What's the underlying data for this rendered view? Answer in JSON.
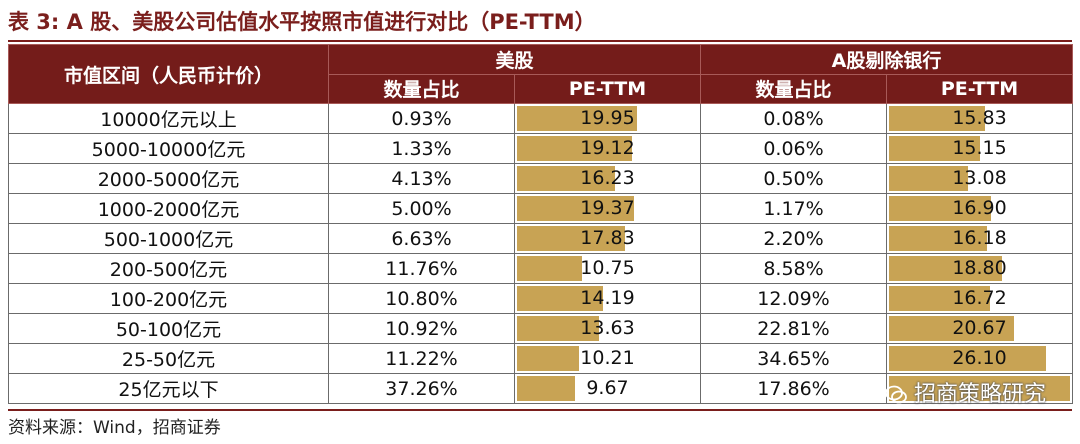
{
  "title": "表 3:  A 股、美股公司估值水平按照市值进行对比（PE-TTM）",
  "header": {
    "group_us": "美股",
    "group_a": "A股剔除银行",
    "col_range": "市值区间（人民币计价）",
    "col_share_us": "数量占比",
    "col_pe_us": "PE-TTM",
    "col_share_a": "数量占比",
    "col_pe_a": "PE-TTM"
  },
  "rows": [
    {
      "range": "10000亿元以上",
      "us_share": "0.93%",
      "us_pe": "19.95",
      "a_share": "0.08%",
      "a_pe": "15.83"
    },
    {
      "range": "5000-10000亿元",
      "us_share": "1.33%",
      "us_pe": "19.12",
      "a_share": "0.06%",
      "a_pe": "15.15"
    },
    {
      "range": "2000-5000亿元",
      "us_share": "4.13%",
      "us_pe": "16.23",
      "a_share": "0.50%",
      "a_pe": "13.08"
    },
    {
      "range": "1000-2000亿元",
      "us_share": "5.00%",
      "us_pe": "19.37",
      "a_share": "1.17%",
      "a_pe": "16.90"
    },
    {
      "range": "500-1000亿元",
      "us_share": "6.63%",
      "us_pe": "17.83",
      "a_share": "2.20%",
      "a_pe": "16.18"
    },
    {
      "range": "200-500亿元",
      "us_share": "11.76%",
      "us_pe": "10.75",
      "a_share": "8.58%",
      "a_pe": "18.80"
    },
    {
      "range": "100-200亿元",
      "us_share": "10.80%",
      "us_pe": "14.19",
      "a_share": "12.09%",
      "a_pe": "16.72"
    },
    {
      "range": "50-100亿元",
      "us_share": "10.92%",
      "us_pe": "13.63",
      "a_share": "22.81%",
      "a_pe": "20.67"
    },
    {
      "range": "25-50亿元",
      "us_share": "11.22%",
      "us_pe": "10.21",
      "a_share": "34.65%",
      "a_pe": "26.10"
    },
    {
      "range": "25亿元以下",
      "us_share": "37.26%",
      "us_pe": "9.67",
      "a_share": "17.86%",
      "a_pe": ""
    }
  ],
  "source": "资料来源：Wind，招商证券",
  "watermark": "招商策略研究",
  "colors": {
    "header_bg": "#741c1a",
    "bar": "#c8a354",
    "title": "#7a1e1c"
  }
}
